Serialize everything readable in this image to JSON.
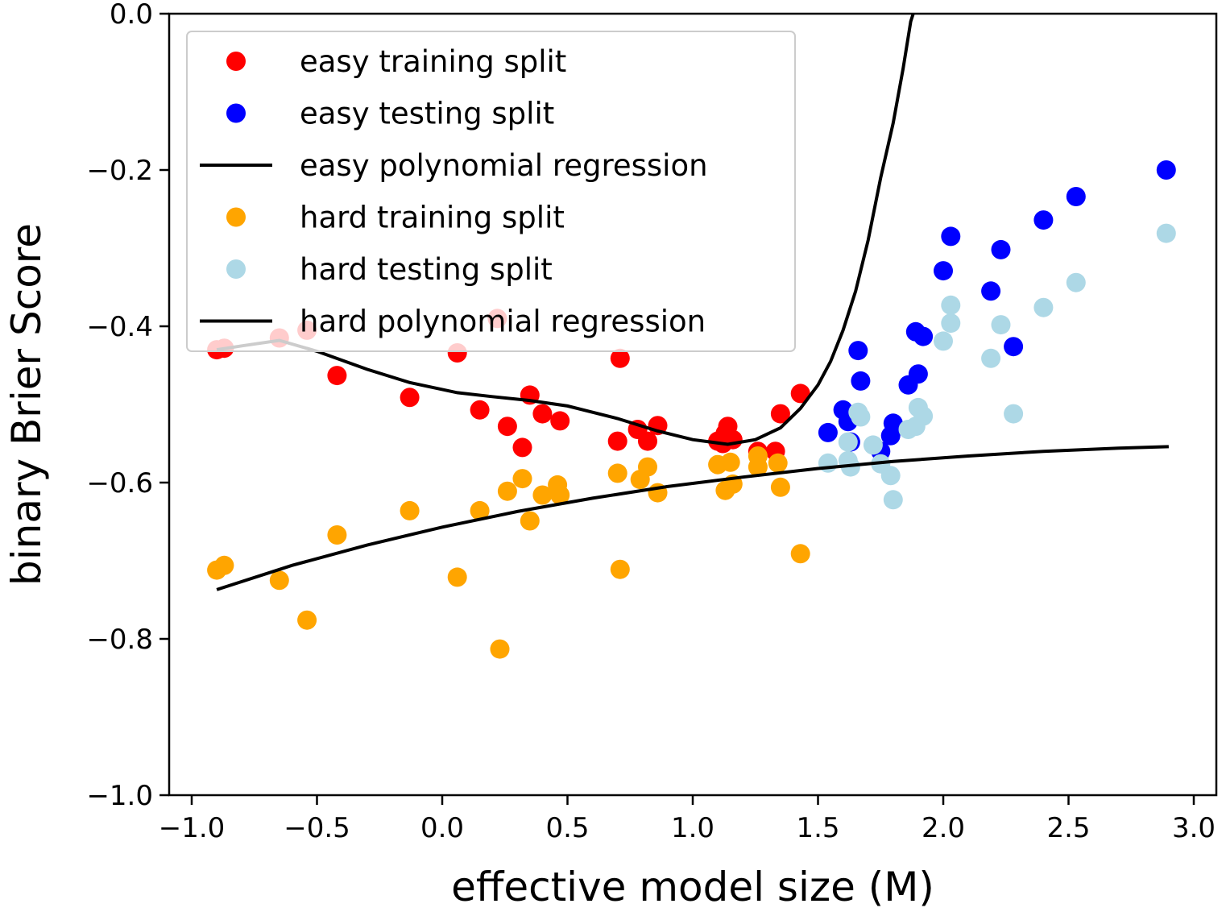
{
  "chart_data": {
    "type": "scatter",
    "xlabel": "effective model size (M)",
    "ylabel": "binary Brier Score",
    "xlim": [
      -1.09,
      3.09
    ],
    "ylim": [
      -1.0,
      0.0
    ],
    "xticks": [
      -1.0,
      -0.5,
      0.0,
      0.5,
      1.0,
      1.5,
      2.0,
      2.5,
      3.0
    ],
    "xtick_labels": [
      "−1.0",
      "−0.5",
      "0.0",
      "0.5",
      "1.0",
      "1.5",
      "2.0",
      "2.5",
      "3.0"
    ],
    "yticks": [
      0.0,
      -0.2,
      -0.4,
      -0.6,
      -0.8,
      -1.0
    ],
    "ytick_labels": [
      "0.0",
      "−0.2",
      "−0.4",
      "−0.6",
      "−0.8",
      "−1.0"
    ],
    "grid": false,
    "legend_position": "top-left",
    "series": [
      {
        "name": "easy training split",
        "kind": "scatter",
        "color": "#ff0000",
        "points": [
          [
            -0.9,
            -0.43
          ],
          [
            -0.87,
            -0.428
          ],
          [
            -0.65,
            -0.415
          ],
          [
            -0.54,
            -0.405
          ],
          [
            -0.42,
            -0.463
          ],
          [
            -0.13,
            -0.491
          ],
          [
            0.06,
            -0.434
          ],
          [
            0.15,
            -0.507
          ],
          [
            0.22,
            -0.39
          ],
          [
            0.26,
            -0.528
          ],
          [
            0.32,
            -0.555
          ],
          [
            0.35,
            -0.488
          ],
          [
            0.4,
            -0.512
          ],
          [
            0.47,
            -0.521
          ],
          [
            0.7,
            -0.547
          ],
          [
            0.71,
            -0.441
          ],
          [
            0.78,
            -0.532
          ],
          [
            0.82,
            -0.547
          ],
          [
            0.86,
            -0.527
          ],
          [
            1.1,
            -0.547
          ],
          [
            1.12,
            -0.55
          ],
          [
            1.13,
            -0.537
          ],
          [
            1.14,
            -0.528
          ],
          [
            1.16,
            -0.545
          ],
          [
            1.26,
            -0.56
          ],
          [
            1.33,
            -0.56
          ],
          [
            1.35,
            -0.512
          ],
          [
            1.43,
            -0.486
          ]
        ]
      },
      {
        "name": "easy testing split",
        "kind": "scatter",
        "color": "#0000ff",
        "points": [
          [
            1.54,
            -0.536
          ],
          [
            1.6,
            -0.507
          ],
          [
            1.62,
            -0.522
          ],
          [
            1.63,
            -0.548
          ],
          [
            1.66,
            -0.431
          ],
          [
            1.67,
            -0.47
          ],
          [
            1.75,
            -0.56
          ],
          [
            1.79,
            -0.54
          ],
          [
            1.8,
            -0.524
          ],
          [
            1.86,
            -0.475
          ],
          [
            1.89,
            -0.407
          ],
          [
            1.9,
            -0.461
          ],
          [
            1.92,
            -0.413
          ],
          [
            2.0,
            -0.329
          ],
          [
            2.03,
            -0.285
          ],
          [
            2.19,
            -0.355
          ],
          [
            2.23,
            -0.302
          ],
          [
            2.28,
            -0.426
          ],
          [
            2.4,
            -0.264
          ],
          [
            2.53,
            -0.234
          ],
          [
            2.89,
            -0.2
          ]
        ]
      },
      {
        "name": "easy polynomial regression",
        "kind": "line",
        "color": "#000000",
        "points": [
          [
            -0.9,
            -0.43
          ],
          [
            -0.8,
            -0.425
          ],
          [
            -0.65,
            -0.418
          ],
          [
            -0.5,
            -0.432
          ],
          [
            -0.3,
            -0.455
          ],
          [
            -0.13,
            -0.472
          ],
          [
            0.06,
            -0.485
          ],
          [
            0.2,
            -0.49
          ],
          [
            0.35,
            -0.495
          ],
          [
            0.5,
            -0.502
          ],
          [
            0.7,
            -0.518
          ],
          [
            0.86,
            -0.534
          ],
          [
            1.0,
            -0.545
          ],
          [
            1.14,
            -0.551
          ],
          [
            1.25,
            -0.545
          ],
          [
            1.35,
            -0.53
          ],
          [
            1.43,
            -0.505
          ],
          [
            1.5,
            -0.475
          ],
          [
            1.55,
            -0.445
          ],
          [
            1.6,
            -0.405
          ],
          [
            1.65,
            -0.355
          ],
          [
            1.7,
            -0.29
          ],
          [
            1.75,
            -0.21
          ],
          [
            1.8,
            -0.14
          ],
          [
            1.84,
            -0.07
          ],
          [
            1.87,
            -0.01
          ],
          [
            1.88,
            0.0
          ]
        ]
      },
      {
        "name": "hard training split",
        "kind": "scatter",
        "color": "#ffa500",
        "points": [
          [
            -0.9,
            -0.712
          ],
          [
            -0.87,
            -0.706
          ],
          [
            -0.65,
            -0.725
          ],
          [
            -0.54,
            -0.776
          ],
          [
            -0.42,
            -0.667
          ],
          [
            -0.13,
            -0.636
          ],
          [
            0.06,
            -0.721
          ],
          [
            0.15,
            -0.636
          ],
          [
            0.23,
            -0.813
          ],
          [
            0.26,
            -0.611
          ],
          [
            0.32,
            -0.595
          ],
          [
            0.35,
            -0.649
          ],
          [
            0.4,
            -0.616
          ],
          [
            0.46,
            -0.603
          ],
          [
            0.47,
            -0.616
          ],
          [
            0.7,
            -0.588
          ],
          [
            0.71,
            -0.711
          ],
          [
            0.79,
            -0.596
          ],
          [
            0.82,
            -0.58
          ],
          [
            0.86,
            -0.613
          ],
          [
            1.1,
            -0.577
          ],
          [
            1.13,
            -0.61
          ],
          [
            1.15,
            -0.574
          ],
          [
            1.16,
            -0.602
          ],
          [
            1.26,
            -0.566
          ],
          [
            1.26,
            -0.58
          ],
          [
            1.34,
            -0.575
          ],
          [
            1.35,
            -0.606
          ],
          [
            1.43,
            -0.691
          ]
        ]
      },
      {
        "name": "hard testing split",
        "kind": "scatter",
        "color": "#add8e6",
        "points": [
          [
            1.54,
            -0.575
          ],
          [
            1.62,
            -0.548
          ],
          [
            1.62,
            -0.572
          ],
          [
            1.63,
            -0.58
          ],
          [
            1.66,
            -0.51
          ],
          [
            1.67,
            -0.516
          ],
          [
            1.72,
            -0.552
          ],
          [
            1.75,
            -0.576
          ],
          [
            1.79,
            -0.591
          ],
          [
            1.8,
            -0.622
          ],
          [
            1.86,
            -0.532
          ],
          [
            1.89,
            -0.528
          ],
          [
            1.9,
            -0.504
          ],
          [
            1.92,
            -0.515
          ],
          [
            2.0,
            -0.419
          ],
          [
            2.03,
            -0.396
          ],
          [
            2.03,
            -0.373
          ],
          [
            2.19,
            -0.441
          ],
          [
            2.23,
            -0.398
          ],
          [
            2.28,
            -0.512
          ],
          [
            2.4,
            -0.376
          ],
          [
            2.53,
            -0.344
          ],
          [
            2.89,
            -0.281
          ]
        ]
      },
      {
        "name": "hard polynomial regression",
        "kind": "line",
        "color": "#000000",
        "points": [
          [
            -0.9,
            -0.737
          ],
          [
            -0.6,
            -0.706
          ],
          [
            -0.3,
            -0.68
          ],
          [
            0.0,
            -0.657
          ],
          [
            0.3,
            -0.637
          ],
          [
            0.6,
            -0.62
          ],
          [
            0.9,
            -0.605
          ],
          [
            1.2,
            -0.593
          ],
          [
            1.5,
            -0.582
          ],
          [
            1.8,
            -0.573
          ],
          [
            2.1,
            -0.566
          ],
          [
            2.4,
            -0.56
          ],
          [
            2.7,
            -0.556
          ],
          [
            2.9,
            -0.554
          ]
        ]
      }
    ]
  }
}
